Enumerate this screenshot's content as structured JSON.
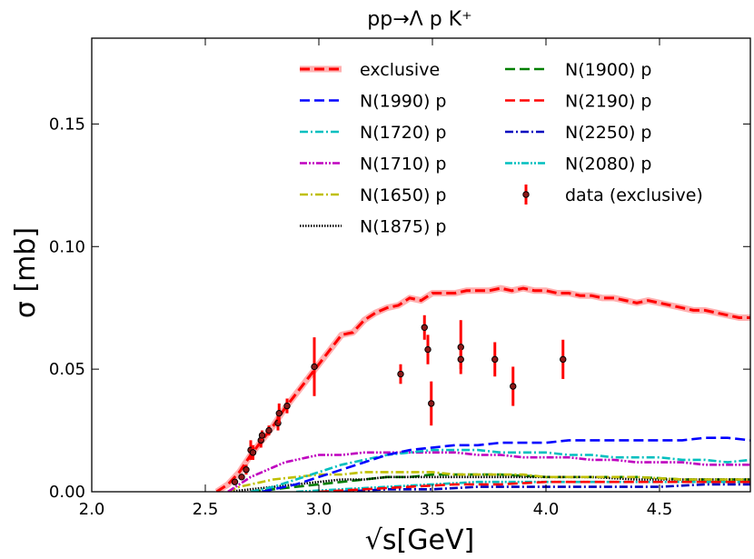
{
  "chart_data": {
    "type": "line",
    "title": "pp→Λ p K⁺",
    "xlabel": "√s[GeV]",
    "ylabel": "σ [mb]",
    "xlim": [
      2.0,
      4.9
    ],
    "ylim": [
      0.0,
      0.185
    ],
    "x_ticks": [
      2.0,
      2.5,
      3.0,
      3.5,
      4.0,
      4.5
    ],
    "x_tick_labels": [
      "2.0",
      "2.5",
      "3.0",
      "3.5",
      "4.0",
      "4.5"
    ],
    "y_ticks": [
      0.0,
      0.05,
      0.1,
      0.15
    ],
    "y_tick_labels": [
      "0.00",
      "0.05",
      "0.10",
      "0.15"
    ],
    "grid": false,
    "legend_position": "top-right",
    "series": [
      {
        "name": "exclusive",
        "color": "#ff0000",
        "dash": "dashed",
        "halo": true,
        "x": [
          2.55,
          2.6,
          2.65,
          2.7,
          2.75,
          2.8,
          2.85,
          2.9,
          2.95,
          3.0,
          3.05,
          3.1,
          3.15,
          3.2,
          3.25,
          3.3,
          3.35,
          3.4,
          3.45,
          3.5,
          3.55,
          3.6,
          3.65,
          3.7,
          3.75,
          3.8,
          3.85,
          3.9,
          3.95,
          4.0,
          4.05,
          4.1,
          4.15,
          4.2,
          4.25,
          4.3,
          4.35,
          4.4,
          4.45,
          4.5,
          4.55,
          4.6,
          4.65,
          4.7,
          4.75,
          4.8,
          4.85,
          4.9
        ],
        "y": [
          0.0,
          0.003,
          0.008,
          0.015,
          0.021,
          0.027,
          0.034,
          0.04,
          0.046,
          0.052,
          0.058,
          0.064,
          0.065,
          0.07,
          0.073,
          0.075,
          0.076,
          0.079,
          0.078,
          0.081,
          0.081,
          0.081,
          0.082,
          0.082,
          0.082,
          0.083,
          0.082,
          0.083,
          0.082,
          0.082,
          0.081,
          0.081,
          0.08,
          0.08,
          0.079,
          0.079,
          0.078,
          0.077,
          0.078,
          0.077,
          0.076,
          0.075,
          0.074,
          0.074,
          0.073,
          0.072,
          0.071,
          0.071
        ]
      },
      {
        "name": "N(1990) p",
        "color": "#0000ff",
        "dash": "dashed",
        "x": [
          2.75,
          2.8,
          2.9,
          3.0,
          3.1,
          3.2,
          3.3,
          3.4,
          3.5,
          3.6,
          3.7,
          3.8,
          3.9,
          4.0,
          4.1,
          4.2,
          4.3,
          4.4,
          4.5,
          4.6,
          4.7,
          4.8,
          4.9
        ],
        "y": [
          0.0,
          0.001,
          0.003,
          0.006,
          0.009,
          0.012,
          0.015,
          0.017,
          0.018,
          0.019,
          0.019,
          0.02,
          0.02,
          0.02,
          0.021,
          0.021,
          0.021,
          0.021,
          0.021,
          0.021,
          0.022,
          0.022,
          0.021
        ]
      },
      {
        "name": "N(1720) p",
        "color": "#00bfbf",
        "dash": "dashdot",
        "x": [
          2.7,
          2.75,
          2.8,
          2.9,
          3.0,
          3.1,
          3.2,
          3.3,
          3.4,
          3.5,
          3.6,
          3.7,
          3.8,
          3.9,
          4.0,
          4.1,
          4.2,
          4.3,
          4.4,
          4.5,
          4.6,
          4.7,
          4.8,
          4.9
        ],
        "y": [
          0.0,
          0.001,
          0.002,
          0.005,
          0.008,
          0.011,
          0.013,
          0.015,
          0.016,
          0.017,
          0.017,
          0.017,
          0.016,
          0.016,
          0.016,
          0.015,
          0.015,
          0.014,
          0.014,
          0.014,
          0.013,
          0.013,
          0.012,
          0.013
        ]
      },
      {
        "name": "N(1710) p",
        "color": "#bf00bf",
        "dash": "dashdotdot",
        "x": [
          2.6,
          2.65,
          2.7,
          2.75,
          2.8,
          2.85,
          2.9,
          2.95,
          3.0,
          3.1,
          3.2,
          3.3,
          3.4,
          3.5,
          3.6,
          3.7,
          3.8,
          3.9,
          4.0,
          4.1,
          4.2,
          4.3,
          4.4,
          4.5,
          4.6,
          4.7,
          4.8,
          4.9
        ],
        "y": [
          0.0,
          0.003,
          0.006,
          0.008,
          0.01,
          0.012,
          0.013,
          0.014,
          0.015,
          0.015,
          0.016,
          0.016,
          0.016,
          0.016,
          0.016,
          0.015,
          0.015,
          0.014,
          0.014,
          0.014,
          0.013,
          0.013,
          0.012,
          0.012,
          0.012,
          0.011,
          0.011,
          0.011
        ]
      },
      {
        "name": "N(1650) p",
        "color": "#bfbf00",
        "dash": "dashdot",
        "x": [
          2.6,
          2.65,
          2.7,
          2.8,
          2.9,
          3.0,
          3.1,
          3.2,
          3.3,
          3.4,
          3.5,
          3.6,
          3.7,
          3.8,
          3.9,
          4.0,
          4.2,
          4.4,
          4.6,
          4.8,
          4.9
        ],
        "y": [
          0.0,
          0.002,
          0.003,
          0.005,
          0.006,
          0.007,
          0.007,
          0.008,
          0.008,
          0.008,
          0.008,
          0.007,
          0.007,
          0.007,
          0.007,
          0.006,
          0.006,
          0.006,
          0.005,
          0.005,
          0.005
        ]
      },
      {
        "name": "N(1875) p",
        "color": "#000000",
        "dash": "dotted",
        "x": [
          2.6,
          2.7,
          2.8,
          2.9,
          3.0,
          3.1,
          3.2,
          3.3,
          3.4,
          3.5,
          3.6,
          3.8,
          4.0,
          4.2,
          4.4,
          4.6,
          4.8,
          4.9
        ],
        "y": [
          0.0,
          0.001,
          0.002,
          0.003,
          0.004,
          0.005,
          0.005,
          0.006,
          0.006,
          0.006,
          0.006,
          0.006,
          0.006,
          0.006,
          0.005,
          0.005,
          0.005,
          0.005
        ]
      },
      {
        "name": "N(1900) p",
        "color": "#007f00",
        "dash": "dashed",
        "x": [
          2.7,
          2.8,
          2.9,
          3.0,
          3.1,
          3.2,
          3.3,
          3.4,
          3.5,
          3.6,
          3.8,
          4.0,
          4.2,
          4.4,
          4.6,
          4.8,
          4.9
        ],
        "y": [
          0.0,
          0.001,
          0.002,
          0.003,
          0.004,
          0.005,
          0.006,
          0.006,
          0.007,
          0.007,
          0.007,
          0.006,
          0.006,
          0.006,
          0.005,
          0.005,
          0.005
        ]
      },
      {
        "name": "N(2190) p",
        "color": "#ff0000",
        "dash": "dashed",
        "x": [
          3.0,
          3.2,
          3.4,
          3.6,
          3.8,
          4.0,
          4.2,
          4.4,
          4.6,
          4.8,
          4.9
        ],
        "y": [
          0.0,
          0.001,
          0.002,
          0.003,
          0.003,
          0.004,
          0.004,
          0.004,
          0.004,
          0.004,
          0.004
        ]
      },
      {
        "name": "N(2250) p",
        "color": "#0000bf",
        "dash": "dashdot",
        "x": [
          3.1,
          3.3,
          3.5,
          3.7,
          3.9,
          4.1,
          4.3,
          4.5,
          4.7,
          4.9
        ],
        "y": [
          0.0,
          0.001,
          0.001,
          0.002,
          0.002,
          0.002,
          0.002,
          0.002,
          0.003,
          0.003
        ]
      },
      {
        "name": "N(2080) p",
        "color": "#00bfbf",
        "dash": "dashdotdot",
        "x": [
          2.9,
          3.1,
          3.3,
          3.5,
          3.7,
          3.9,
          4.1,
          4.3,
          4.5,
          4.7,
          4.9
        ],
        "y": [
          0.0,
          0.001,
          0.002,
          0.003,
          0.004,
          0.004,
          0.004,
          0.004,
          0.004,
          0.004,
          0.004
        ]
      }
    ],
    "data_points": {
      "name": "data (exclusive)",
      "color": "#ff0000",
      "points": [
        {
          "x": 2.63,
          "y": 0.004,
          "err": 0.001
        },
        {
          "x": 2.66,
          "y": 0.006,
          "err": 0.001
        },
        {
          "x": 2.68,
          "y": 0.009,
          "err": 0.002
        },
        {
          "x": 2.7,
          "y": 0.017,
          "err": 0.004
        },
        {
          "x": 2.71,
          "y": 0.016,
          "err": 0.003
        },
        {
          "x": 2.745,
          "y": 0.021,
          "err": 0.003
        },
        {
          "x": 2.75,
          "y": 0.023,
          "err": 0.002
        },
        {
          "x": 2.78,
          "y": 0.025,
          "err": 0.002
        },
        {
          "x": 2.82,
          "y": 0.028,
          "err": 0.003
        },
        {
          "x": 2.825,
          "y": 0.032,
          "err": 0.004
        },
        {
          "x": 2.86,
          "y": 0.035,
          "err": 0.003
        },
        {
          "x": 2.98,
          "y": 0.051,
          "err": 0.012
        },
        {
          "x": 3.36,
          "y": 0.048,
          "err": 0.004
        },
        {
          "x": 3.465,
          "y": 0.067,
          "err": 0.005
        },
        {
          "x": 3.48,
          "y": 0.058,
          "err": 0.006
        },
        {
          "x": 3.495,
          "y": 0.036,
          "err": 0.009
        },
        {
          "x": 3.625,
          "y": 0.059,
          "err": 0.011
        },
        {
          "x": 3.625,
          "y": 0.054,
          "err": 0.004
        },
        {
          "x": 3.775,
          "y": 0.054,
          "err": 0.007
        },
        {
          "x": 3.855,
          "y": 0.043,
          "err": 0.008
        },
        {
          "x": 4.075,
          "y": 0.054,
          "err": 0.008
        }
      ]
    },
    "legend_columns": [
      [
        "exclusive",
        "N(1990) p",
        "N(1720) p",
        "N(1710) p",
        "N(1650) p",
        "N(1875) p"
      ],
      [
        "N(1900) p",
        "N(2190) p",
        "N(2250) p",
        "N(2080) p",
        "data (exclusive)"
      ]
    ]
  }
}
